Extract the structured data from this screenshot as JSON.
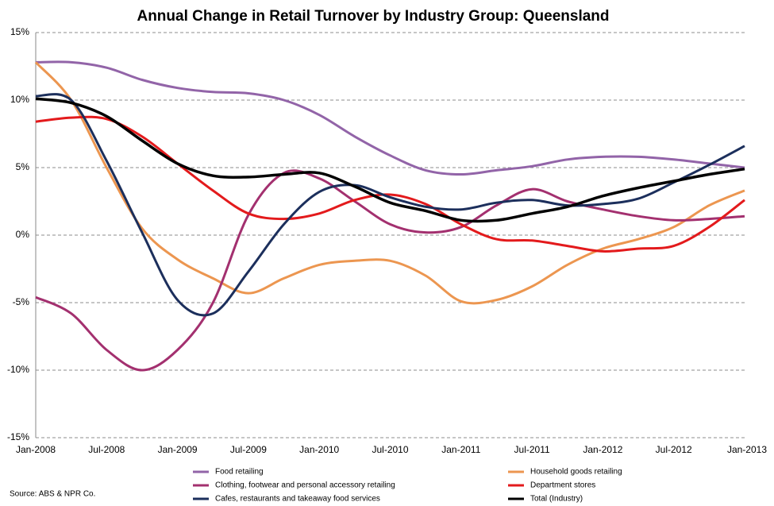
{
  "chart_data": {
    "type": "line",
    "title": "Annual Change in Retail Turnover by Industry Group: Queensland",
    "source": "Source: ABS & NPR Co.",
    "categories": [
      "Jan-2008",
      null,
      "Jul-2008",
      null,
      "Jan-2009",
      null,
      "Jul-2009",
      null,
      "Jan-2010",
      null,
      "Jul-2010",
      null,
      "Jan-2011",
      null,
      "Jul-2011",
      null,
      "Jan-2012",
      null,
      "Jul-2012",
      null,
      "Jan-2013"
    ],
    "series": [
      {
        "name": "Food retailing",
        "color": "#9264a8",
        "values": [
          12.8,
          12.8,
          12.4,
          11.5,
          10.9,
          10.6,
          10.5,
          10.0,
          8.9,
          7.3,
          5.9,
          4.8,
          4.5,
          4.8,
          5.1,
          5.6,
          5.8,
          5.8,
          5.6,
          5.3,
          5.0
        ]
      },
      {
        "name": "Household goods retailing",
        "color": "#ec9650",
        "values": [
          12.8,
          10.0,
          5.0,
          0.5,
          -1.8,
          -3.2,
          -4.3,
          -3.2,
          -2.2,
          -1.9,
          -1.9,
          -3.0,
          -4.9,
          -4.8,
          -3.8,
          -2.2,
          -1.0,
          -0.3,
          0.6,
          2.2,
          3.3
        ]
      },
      {
        "name": "Clothing, footwear and personal accessory retailing",
        "color": "#a3306f",
        "values": [
          -4.6,
          -5.8,
          -8.5,
          -10.0,
          -8.5,
          -5.0,
          1.5,
          4.6,
          4.2,
          2.5,
          0.8,
          0.2,
          0.6,
          2.2,
          3.4,
          2.5,
          1.9,
          1.4,
          1.1,
          1.2,
          1.4
        ]
      },
      {
        "name": "Department stores",
        "color": "#e31a1c",
        "values": [
          8.4,
          8.7,
          8.6,
          7.3,
          5.3,
          3.3,
          1.6,
          1.2,
          1.6,
          2.6,
          3.0,
          2.3,
          0.8,
          -0.3,
          -0.4,
          -0.8,
          -1.2,
          -1.0,
          -0.8,
          0.6,
          2.6
        ]
      },
      {
        "name": "Cafes, restaurants and takeaway food services",
        "color": "#1c2f5c",
        "values": [
          10.3,
          10.0,
          5.5,
          0.2,
          -4.8,
          -5.8,
          -2.7,
          0.8,
          3.2,
          3.7,
          2.8,
          2.1,
          1.9,
          2.4,
          2.6,
          2.2,
          2.3,
          2.7,
          3.9,
          5.2,
          6.6
        ]
      },
      {
        "name": "Total (Industry)",
        "color": "#000000",
        "values": [
          10.1,
          9.8,
          8.8,
          7.0,
          5.3,
          4.4,
          4.3,
          4.5,
          4.6,
          3.6,
          2.4,
          1.8,
          1.1,
          1.1,
          1.6,
          2.1,
          2.9,
          3.5,
          4.0,
          4.5,
          4.9
        ]
      }
    ],
    "ylim": [
      -15,
      15
    ],
    "yticks": [
      {
        "value": -15,
        "label": "-15%"
      },
      {
        "value": -10,
        "label": "-10%"
      },
      {
        "value": -5,
        "label": "-5%"
      },
      {
        "value": 0,
        "label": "0%"
      },
      {
        "value": 5,
        "label": "5%"
      },
      {
        "value": 10,
        "label": "10%"
      },
      {
        "value": 15,
        "label": "15%"
      }
    ],
    "grid": true
  }
}
